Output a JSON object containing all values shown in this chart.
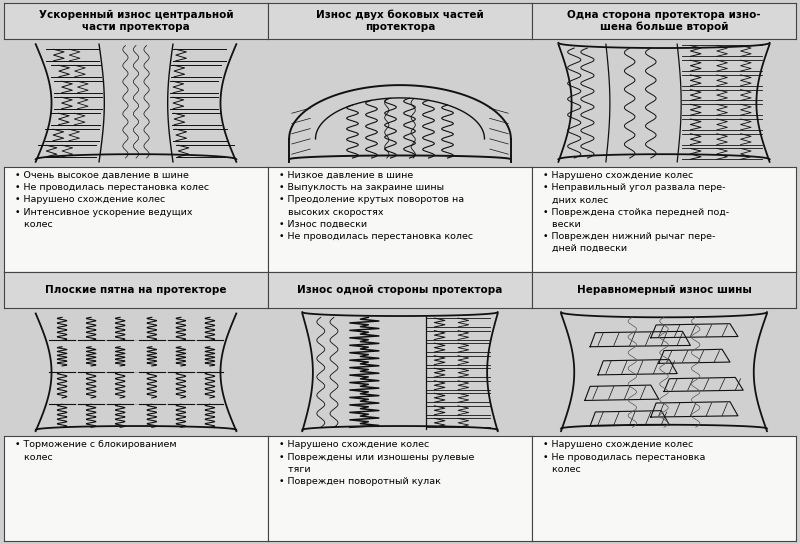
{
  "bg_color": "#d8d8d8",
  "border_color": "#444444",
  "title_bg": "#d8d8d8",
  "cell_bg": "#f0f0ee",
  "fig_bg": "#d0d0d0",
  "titles": [
    "Ускоренный износ центральной\nчасти протектора",
    "Износ двух боковых частей\nпротектора",
    "Одна сторона протектора изно-\nшена больше второй",
    "Плоские пятна на протекторе",
    "Износ одной стороны протектора",
    "Неравномерный износ шины"
  ],
  "bullets": [
    "• Очень высокое давление в шине\n• Не проводилась перестановка колес\n• Нарушено схождение колес\n• Интенсивное ускорение ведущих\n   колес",
    "• Низкое давление в шине\n• Выпуклость на закраине шины\n• Преодоление крутых поворотов на\n   высоких скоростях\n• Износ подвески\n• Не проводилась перестановка колес",
    "• Нарушено схождение колес\n• Неправильный угол развала пере-\n   дних колес\n• Повреждена стойка передней под-\n   вески\n• Поврежден нижний рычаг пере-\n   дней подвески",
    "• Торможение с блокированием\n   колес",
    "• Нарушено схождение колес\n• Повреждены или изношены рулевые\n   тяги\n• Поврежден поворотный кулак",
    "• Нарушено схождение колес\n• Не проводилась перестановка\n   колес"
  ],
  "nrows": 2,
  "ncols": 3,
  "title_fontsize": 7.5,
  "bullet_fontsize": 6.8,
  "line_color": "#111111",
  "grid_color": "#333333"
}
